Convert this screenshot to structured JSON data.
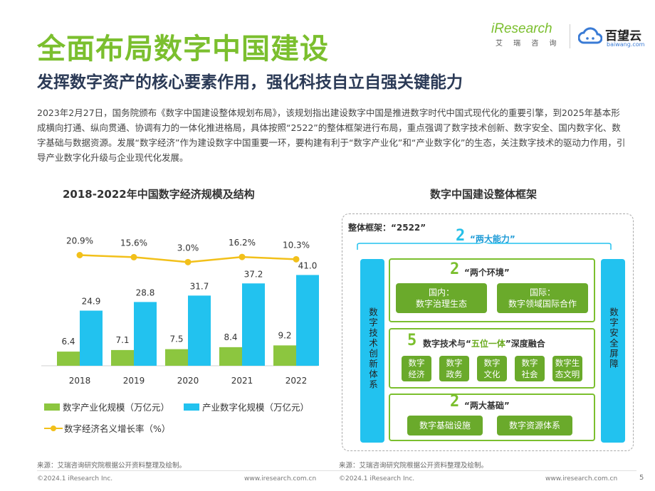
{
  "title": "全面布局数字中国建设",
  "subtitle": "发挥数字资产的核心要素作用，强化科技自立自强关键能力",
  "intro": "2023年2月27日，国务院颁布《数字中国建设整体规划布局》，该规划指出建设数字中国是推进数字时代中国式现代化的重要引擎，到2025年基本形成横向打通、纵向贯通、协调有力的一体化推进格局，具体按照“2522”的整体框架进行布局，重点强调了数字技术创新、数字安全、国内数字化、数字基础与数据资源。发展“数字经济”作为建设数字中国重要一环，要构建有利于“数字产业化”和“产业数字化”的生态，关注数字技术的驱动力作用，引导产业数字化升级与企业现代化发展。",
  "logos": {
    "iresearch": "iResearch",
    "iresearch_cn": "艾 瑞 咨 询",
    "baiwang": "百望云",
    "baiwang_url": "baiwang.com"
  },
  "chart_section_title": "2018-2022年中国数字经济规模及结构",
  "chart_data": {
    "type": "bar",
    "title": "2018-2022年中国数字经济规模及结构",
    "categories": [
      "2018",
      "2019",
      "2020",
      "2021",
      "2022"
    ],
    "series": [
      {
        "name": "数字产业化规模（万亿元）",
        "values": [
          6.4,
          7.1,
          7.5,
          8.4,
          9.2
        ],
        "labels": [
          "6.4",
          "7.1",
          "7.5",
          "8.4",
          "9.2"
        ],
        "color": "#8cc63f"
      },
      {
        "name": "产业数字化规模（万亿元）",
        "values": [
          24.9,
          28.8,
          31.7,
          37.2,
          41.0
        ],
        "labels": [
          "24.9",
          "28.8",
          "31.7",
          "37.2",
          "41.0"
        ],
        "color": "#22c2ef"
      }
    ],
    "line": {
      "name": "数字经济名义增长率（%）",
      "values": [
        20.9,
        15.6,
        3.0,
        16.2,
        10.3
      ],
      "labels": [
        "20.9%",
        "15.6%",
        "3.0%",
        "16.2%",
        "10.3%"
      ],
      "color": "#f2c01a"
    },
    "ylim": [
      0,
      45
    ],
    "legend": "bottom"
  },
  "framework_section_title": "数字中国建设整体框架",
  "framework": {
    "label": "整体框架：“2522”",
    "digit_2": "2",
    "digit_5": "5",
    "two_capabilities": "“两大能力”",
    "two_environments": "“两个环境”",
    "five_in_one_a": "数字技术与“",
    "five_in_one_b": "五位一体",
    "five_in_one_c": "”深度融合",
    "two_foundations": "“两大基础”",
    "left_col": "数字技术创新体系",
    "right_col": "数字安全屏障",
    "env_domestic": [
      "国内：",
      "数字治理生态"
    ],
    "env_international": [
      "国际：",
      "数字领域国际合作"
    ],
    "five_items": [
      [
        "数字",
        "经济"
      ],
      [
        "数字",
        "政务"
      ],
      [
        "数字",
        "文化"
      ],
      [
        "数字",
        "社会"
      ],
      [
        "数字生",
        "态文明"
      ]
    ],
    "foundations": [
      "数字基础设施",
      "数字资源体系"
    ]
  },
  "source_left": "来源：艾瑞咨询研究院根据公开资料整理及绘制。",
  "source_right": "来源：艾瑞咨询研究院根据公开资料整理及绘制。",
  "footer_left_a": "©2024.1 iResearch Inc.",
  "footer_url_a": "www.iresearch.com.cn",
  "footer_left_b": "©2024.1 iResearch Inc.",
  "footer_url_b": "www.iresearch.com.cn",
  "page_number": "5"
}
